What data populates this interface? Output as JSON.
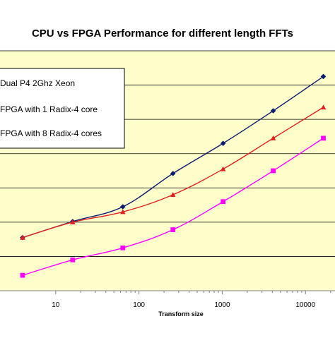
{
  "chart_data": {
    "type": "line",
    "title": "CPU vs FPGA Performance for different length FFTs",
    "xlabel": "Transform size",
    "ylabel": "",
    "x_scale": "log",
    "xlim": [
      4,
      16384
    ],
    "ylim": [
      0,
      7
    ],
    "x_ticks": [
      10,
      100,
      1000,
      10000
    ],
    "x_tick_labels": [
      "10",
      "100",
      "1000",
      "10000"
    ],
    "y_gridlines": [
      1,
      2,
      3,
      4,
      5,
      6,
      7
    ],
    "grid": true,
    "legend_position": "top-left",
    "x": [
      4,
      16,
      64,
      256,
      1024,
      4096,
      16384
    ],
    "series": [
      {
        "name": "Dual P4 2Ghz Xeon",
        "color": "#0d1b6e",
        "marker": "diamond",
        "values": [
          1.55,
          2.02,
          2.45,
          3.42,
          4.3,
          5.25,
          6.25
        ]
      },
      {
        "name": "FPGA with 1 Radix-4 core",
        "color": "#e02020",
        "marker": "triangle",
        "values": [
          1.55,
          2.0,
          2.3,
          2.8,
          3.55,
          4.45,
          5.35
        ]
      },
      {
        "name": "FPGA with 8 Radix-4 cores",
        "color": "#ff00ff",
        "marker": "square",
        "values": [
          0.45,
          0.9,
          1.25,
          1.78,
          2.6,
          3.5,
          4.45
        ]
      }
    ],
    "colors": {
      "plot_background": "#ffffcc",
      "gridline": "#000000",
      "axis": "#808080"
    }
  }
}
